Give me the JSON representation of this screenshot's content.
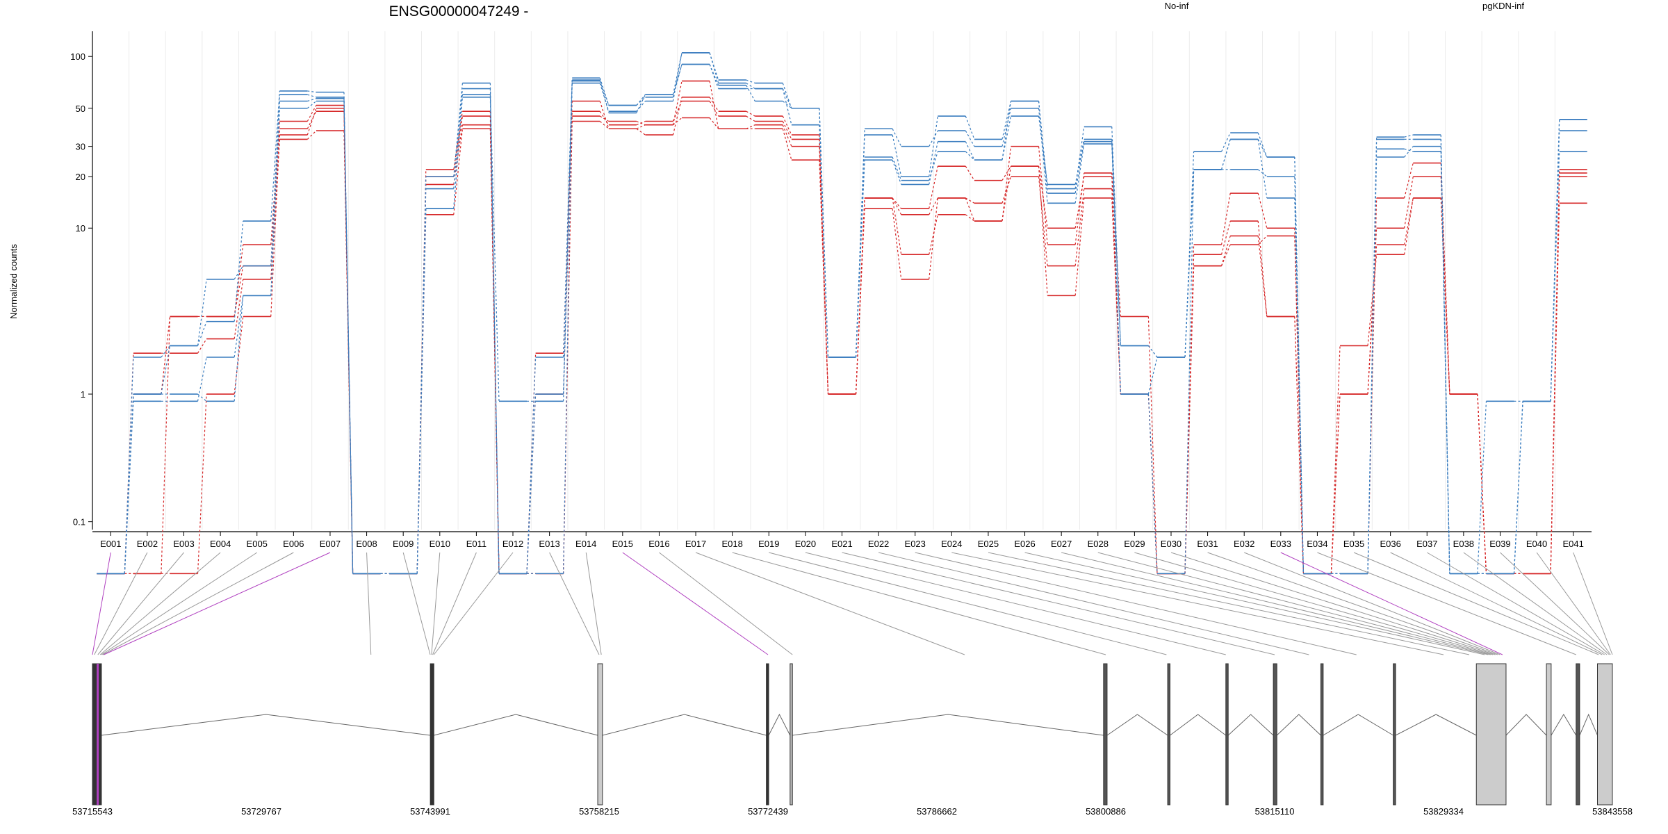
{
  "title": "ENSG00000047249 -",
  "chart_data": {
    "type": "line",
    "title": "ENSG00000047249 -",
    "ylabel": "Normalized counts",
    "yscale": "log(x+0.1)",
    "ylim": [
      0.08,
      140
    ],
    "yticks": [
      0.1,
      1,
      10,
      20,
      30,
      50,
      100
    ],
    "ytick_labels": [
      "0.1",
      "1",
      "10",
      "20",
      "30",
      "50",
      "100"
    ],
    "grid": "vertical, light",
    "legend_placement": "top",
    "categories": [
      "E001",
      "E002",
      "E003",
      "E004",
      "E005",
      "E006",
      "E007",
      "E008",
      "E009",
      "E010",
      "E011",
      "E012",
      "E013",
      "E014",
      "E015",
      "E016",
      "E017",
      "E018",
      "E019",
      "E020",
      "E021",
      "E022",
      "E023",
      "E024",
      "E025",
      "E026",
      "E027",
      "E028",
      "E029",
      "E030",
      "E031",
      "E032",
      "E033",
      "E034",
      "E035",
      "E036",
      "E037",
      "E038",
      "E039",
      "E040",
      "E041"
    ],
    "groups": [
      {
        "name": "No-inf",
        "color": "#d62728"
      },
      {
        "name": "pgKDN-inf",
        "color": "#3a7dbf"
      }
    ],
    "series": [
      {
        "name": "No-inf",
        "color": "#d62728",
        "values": [
          0,
          1,
          3,
          3,
          6,
          38,
          48,
          0,
          0,
          20,
          45,
          0,
          1,
          48,
          40,
          42,
          55,
          45,
          42,
          33,
          1,
          15,
          13,
          23,
          19,
          23,
          10,
          20,
          1,
          0,
          7,
          11,
          3,
          0,
          1,
          10,
          20,
          1,
          0,
          0,
          20
        ]
      },
      {
        "name": "No-inf",
        "color": "#d62728",
        "values": [
          0,
          1.8,
          1.8,
          2.2,
          5,
          33,
          37,
          0,
          0,
          12,
          38,
          0,
          0,
          42,
          38,
          40,
          44,
          38,
          40,
          30,
          1,
          13,
          5,
          15,
          14,
          20,
          6,
          17,
          1,
          0,
          6,
          8,
          9,
          0,
          2,
          7,
          15,
          1,
          0,
          0,
          14
        ]
      },
      {
        "name": "No-inf",
        "color": "#d62728",
        "values": [
          0,
          0,
          0,
          1,
          3,
          35,
          50,
          0,
          0,
          22,
          48,
          0,
          1.8,
          55,
          38,
          35,
          58,
          48,
          45,
          35,
          1,
          15,
          12,
          15,
          11,
          30,
          8,
          21,
          3,
          0,
          8,
          16,
          10,
          0,
          0,
          15,
          24,
          1,
          0,
          0,
          22
        ]
      },
      {
        "name": "No-inf",
        "color": "#d62728",
        "values": [
          0,
          0,
          3,
          3,
          8,
          42,
          52,
          0,
          0,
          18,
          40,
          0,
          0,
          45,
          42,
          40,
          72,
          38,
          38,
          25,
          1,
          15,
          7,
          12,
          11,
          23,
          4,
          15,
          1,
          0,
          6,
          9,
          3,
          0,
          1,
          8,
          15,
          1,
          0,
          0,
          21
        ]
      },
      {
        "name": "pgKDN-inf",
        "color": "#3a7dbf",
        "values": [
          0,
          1.7,
          2,
          2.8,
          11,
          63,
          62,
          0,
          0,
          20,
          70,
          0,
          1.7,
          75,
          52,
          60,
          105,
          73,
          70,
          50,
          1.7,
          35,
          20,
          45,
          33,
          55,
          17,
          39,
          2,
          1.7,
          28,
          36,
          26,
          0,
          0,
          34,
          35,
          0,
          0.9,
          0.9,
          43
        ]
      },
      {
        "name": "pgKDN-inf",
        "color": "#3a7dbf",
        "values": [
          0,
          0.9,
          0.9,
          1.7,
          4,
          55,
          57,
          0,
          0,
          13,
          60,
          0.9,
          0.9,
          72,
          52,
          58,
          90,
          68,
          55,
          50,
          1.7,
          25,
          18,
          32,
          25,
          55,
          16,
          32,
          2,
          1.7,
          22,
          33,
          26,
          0,
          0,
          26,
          30,
          0,
          0,
          0.9,
          37
        ]
      },
      {
        "name": "pgKDN-inf",
        "color": "#3a7dbf",
        "values": [
          0,
          1,
          2,
          5,
          6,
          60,
          58,
          0,
          0,
          17,
          65,
          0,
          0,
          73,
          47,
          60,
          90,
          65,
          65,
          40,
          1.7,
          38,
          30,
          37,
          30,
          50,
          14,
          31,
          1,
          0,
          22,
          22,
          20,
          0,
          0,
          29,
          28,
          0,
          0,
          0.9,
          28
        ]
      },
      {
        "name": "pgKDN-inf",
        "color": "#3a7dbf",
        "values": [
          0,
          1,
          1,
          0.9,
          4,
          50,
          55,
          0,
          0,
          13,
          58,
          0,
          1,
          70,
          48,
          55,
          105,
          70,
          65,
          50,
          1.7,
          26,
          19,
          28,
          25,
          45,
          18,
          33,
          1,
          1.7,
          22,
          33,
          15,
          0,
          0,
          33,
          33,
          0,
          0,
          0.9,
          43
        ]
      }
    ],
    "genomic_axis": {
      "tick_labels": [
        "53715543",
        "53729767",
        "53743991",
        "53758215",
        "53772439",
        "53786662",
        "53800886",
        "53815110",
        "53829334",
        "53843558"
      ],
      "range": [
        53715543,
        53843558
      ]
    }
  }
}
